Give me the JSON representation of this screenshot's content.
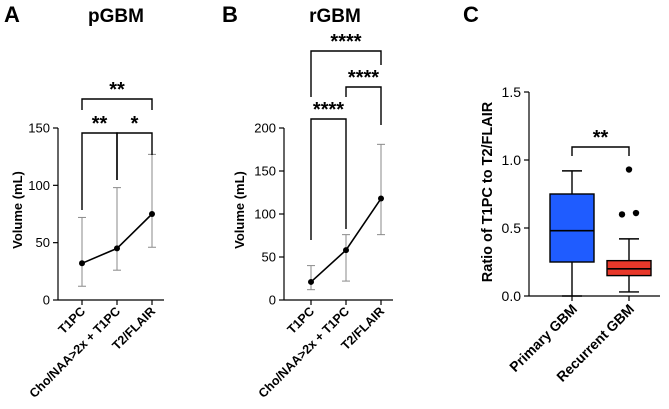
{
  "chart_data": [
    {
      "panel": "A",
      "type": "line",
      "title": "pGBM",
      "ylabel": "Volume (mL)",
      "ylim": [
        0,
        150
      ],
      "yticks": [
        0,
        50,
        100,
        150
      ],
      "categories": [
        "T1PC",
        "Cho/NAA>2x + T1PC",
        "T2/FLAIR"
      ],
      "series": [
        {
          "name": "pGBM",
          "values": [
            32,
            45,
            75
          ],
          "err_low": [
            12,
            26,
            46
          ],
          "err_high": [
            72,
            98,
            127
          ]
        }
      ],
      "significance": [
        {
          "from": 0,
          "to": 1,
          "label": "**"
        },
        {
          "from": 1,
          "to": 2,
          "label": "*"
        },
        {
          "from": 0,
          "to": 2,
          "label": "**"
        }
      ]
    },
    {
      "panel": "B",
      "type": "line",
      "title": "rGBM",
      "ylabel": "Volume (mL)",
      "ylim": [
        0,
        200
      ],
      "yticks": [
        0,
        50,
        100,
        150,
        200
      ],
      "categories": [
        "T1PC",
        "Cho/NAA>2x + T1PC",
        "T2/FLAIR"
      ],
      "series": [
        {
          "name": "rGBM",
          "values": [
            21,
            58,
            118
          ],
          "err_low": [
            12,
            22,
            76
          ],
          "err_high": [
            40,
            76,
            181
          ]
        }
      ],
      "significance": [
        {
          "from": 0,
          "to": 1,
          "label": "****"
        },
        {
          "from": 1,
          "to": 2,
          "label": "****"
        },
        {
          "from": 0,
          "to": 2,
          "label": "****"
        }
      ]
    },
    {
      "panel": "C",
      "type": "box",
      "title": "",
      "ylabel": "Ratio of T1PC to T2/FLAIR",
      "ylim": [
        0,
        1.5
      ],
      "yticks": [
        "0.0",
        "0.5",
        "1.0",
        "1.5"
      ],
      "categories": [
        "Primary GBM",
        "Recurrent GBM"
      ],
      "boxes": [
        {
          "name": "Primary GBM",
          "color": "#1f5cff",
          "whisker_low": 0.0,
          "q1": 0.25,
          "median": 0.48,
          "q3": 0.75,
          "whisker_high": 0.92,
          "outliers": []
        },
        {
          "name": "Recurrent GBM",
          "color": "#e8382a",
          "whisker_low": 0.03,
          "q1": 0.15,
          "median": 0.2,
          "q3": 0.26,
          "whisker_high": 0.42,
          "outliers": [
            0.6,
            0.61,
            0.93
          ]
        }
      ],
      "significance": [
        {
          "from": 0,
          "to": 1,
          "label": "**"
        }
      ]
    }
  ]
}
